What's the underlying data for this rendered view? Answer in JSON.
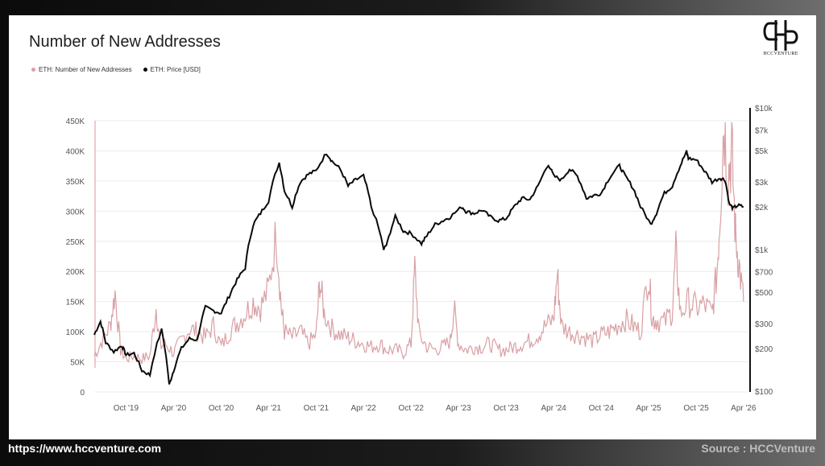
{
  "header": {
    "title": "Number of New Addresses"
  },
  "logo": {
    "text": "HCCVENTURE"
  },
  "footer": {
    "url": "https://www.hccventure.com",
    "source": "Source : HCCVenture"
  },
  "colors": {
    "addresses": "#d9a0a4",
    "price": "#0a0a0a"
  },
  "chart_data": {
    "type": "line",
    "title": "Number of New Addresses",
    "grid": "horizontal",
    "legend_position": "top-left",
    "x_ticks": [
      "Oct '19",
      "Apr '20",
      "Oct '20",
      "Apr '21",
      "Oct '21",
      "Apr '22",
      "Oct '22",
      "Apr '23",
      "Oct '23",
      "Apr '24",
      "Oct '24",
      "Apr '25",
      "Oct '25",
      "Apr '26"
    ],
    "y_left": {
      "ticks": [
        "0",
        "50K",
        "100K",
        "150K",
        "200K",
        "250K",
        "300K",
        "350K",
        "400K",
        "450K"
      ],
      "range": [
        0,
        450000
      ]
    },
    "y_right": {
      "ticks": [
        "$100",
        "$200",
        "$300",
        "$500",
        "$700",
        "$1k",
        "$2k",
        "$3k",
        "$5k",
        "$7k",
        "$10k"
      ],
      "scale": "log",
      "range": [
        100,
        10000
      ]
    },
    "series": [
      {
        "name": "ETH: Number of New Addresses",
        "axis": "left",
        "points": [
          [
            "2019-06-01",
            60000
          ],
          [
            "2019-07-01",
            85000
          ],
          [
            "2019-08-01",
            110000
          ],
          [
            "2019-08-20",
            165000
          ],
          [
            "2019-09-10",
            70000
          ],
          [
            "2019-10-01",
            55000
          ],
          [
            "2019-11-01",
            60000
          ],
          [
            "2019-12-01",
            55000
          ],
          [
            "2020-01-01",
            60000
          ],
          [
            "2020-01-25",
            140000
          ],
          [
            "2020-02-10",
            75000
          ],
          [
            "2020-03-01",
            80000
          ],
          [
            "2020-04-01",
            65000
          ],
          [
            "2020-05-01",
            85000
          ],
          [
            "2020-06-01",
            105000
          ],
          [
            "2020-07-01",
            100000
          ],
          [
            "2020-08-01",
            90000
          ],
          [
            "2020-09-01",
            110000
          ],
          [
            "2020-10-01",
            75000
          ],
          [
            "2020-11-01",
            100000
          ],
          [
            "2020-12-01",
            115000
          ],
          [
            "2021-01-01",
            130000
          ],
          [
            "2021-02-01",
            150000
          ],
          [
            "2021-03-01",
            140000
          ],
          [
            "2021-04-01",
            170000
          ],
          [
            "2021-05-01",
            265000
          ],
          [
            "2021-05-20",
            140000
          ],
          [
            "2021-06-01",
            100000
          ],
          [
            "2021-07-01",
            90000
          ],
          [
            "2021-08-01",
            100000
          ],
          [
            "2021-09-01",
            80000
          ],
          [
            "2021-10-01",
            95000
          ],
          [
            "2021-10-15",
            185000
          ],
          [
            "2021-11-01",
            130000
          ],
          [
            "2021-12-01",
            105000
          ],
          [
            "2022-01-01",
            95000
          ],
          [
            "2022-02-01",
            90000
          ],
          [
            "2022-03-01",
            85000
          ],
          [
            "2022-04-01",
            80000
          ],
          [
            "2022-05-01",
            75000
          ],
          [
            "2022-06-01",
            80000
          ],
          [
            "2022-07-01",
            70000
          ],
          [
            "2022-08-01",
            70000
          ],
          [
            "2022-09-01",
            65000
          ],
          [
            "2022-10-01",
            80000
          ],
          [
            "2022-10-15",
            205000
          ],
          [
            "2022-11-01",
            95000
          ],
          [
            "2022-12-01",
            75000
          ],
          [
            "2023-01-01",
            70000
          ],
          [
            "2023-02-01",
            75000
          ],
          [
            "2023-03-01",
            85000
          ],
          [
            "2023-03-15",
            140000
          ],
          [
            "2023-04-01",
            80000
          ],
          [
            "2023-05-01",
            70000
          ],
          [
            "2023-06-01",
            75000
          ],
          [
            "2023-07-01",
            75000
          ],
          [
            "2023-08-01",
            80000
          ],
          [
            "2023-09-01",
            70000
          ],
          [
            "2023-10-01",
            70000
          ],
          [
            "2023-11-01",
            75000
          ],
          [
            "2023-12-01",
            80000
          ],
          [
            "2024-01-01",
            85000
          ],
          [
            "2024-02-01",
            95000
          ],
          [
            "2024-03-01",
            110000
          ],
          [
            "2024-04-01",
            120000
          ],
          [
            "2024-04-15",
            195000
          ],
          [
            "2024-05-01",
            110000
          ],
          [
            "2024-06-01",
            100000
          ],
          [
            "2024-07-01",
            95000
          ],
          [
            "2024-08-01",
            90000
          ],
          [
            "2024-09-01",
            85000
          ],
          [
            "2024-10-01",
            95000
          ],
          [
            "2024-11-01",
            100000
          ],
          [
            "2024-12-01",
            110000
          ],
          [
            "2025-01-01",
            120000
          ],
          [
            "2025-02-01",
            110000
          ],
          [
            "2025-03-01",
            100000
          ],
          [
            "2025-04-01",
            200000
          ],
          [
            "2025-04-15",
            120000
          ],
          [
            "2025-05-01",
            120000
          ],
          [
            "2025-06-01",
            115000
          ],
          [
            "2025-07-01",
            135000
          ],
          [
            "2025-07-15",
            230000
          ],
          [
            "2025-08-01",
            130000
          ],
          [
            "2025-09-01",
            150000
          ],
          [
            "2025-10-01",
            140000
          ],
          [
            "2025-11-01",
            145000
          ],
          [
            "2025-12-01",
            130000
          ],
          [
            "2025-12-20",
            200000
          ],
          [
            "2026-01-01",
            300000
          ],
          [
            "2026-01-15",
            450000
          ],
          [
            "2026-02-01",
            360000
          ],
          [
            "2026-02-15",
            400000
          ],
          [
            "2026-03-01",
            260000
          ],
          [
            "2026-03-15",
            210000
          ],
          [
            "2026-04-01",
            150000
          ]
        ]
      },
      {
        "name": "ETH: Price [USD]",
        "axis": "right",
        "points": [
          [
            "2019-06-01",
            250
          ],
          [
            "2019-06-25",
            310
          ],
          [
            "2019-07-15",
            220
          ],
          [
            "2019-08-15",
            190
          ],
          [
            "2019-09-15",
            210
          ],
          [
            "2019-10-01",
            180
          ],
          [
            "2019-11-01",
            185
          ],
          [
            "2019-12-01",
            140
          ],
          [
            "2020-01-01",
            130
          ],
          [
            "2020-02-15",
            270
          ],
          [
            "2020-03-15",
            110
          ],
          [
            "2020-04-01",
            140
          ],
          [
            "2020-05-01",
            200
          ],
          [
            "2020-06-01",
            235
          ],
          [
            "2020-07-01",
            230
          ],
          [
            "2020-08-01",
            390
          ],
          [
            "2020-09-01",
            370
          ],
          [
            "2020-10-01",
            355
          ],
          [
            "2020-11-01",
            470
          ],
          [
            "2020-12-01",
            610
          ],
          [
            "2021-01-01",
            740
          ],
          [
            "2021-02-01",
            1500
          ],
          [
            "2021-03-01",
            1800
          ],
          [
            "2021-04-01",
            2200
          ],
          [
            "2021-05-12",
            4100
          ],
          [
            "2021-06-01",
            2600
          ],
          [
            "2021-07-01",
            2000
          ],
          [
            "2021-08-01",
            3000
          ],
          [
            "2021-09-01",
            3400
          ],
          [
            "2021-10-01",
            3600
          ],
          [
            "2021-11-10",
            4800
          ],
          [
            "2021-12-01",
            4200
          ],
          [
            "2022-01-01",
            3700
          ],
          [
            "2022-02-01",
            2800
          ],
          [
            "2022-03-01",
            3100
          ],
          [
            "2022-04-01",
            3300
          ],
          [
            "2022-05-01",
            2000
          ],
          [
            "2022-06-18",
            1000
          ],
          [
            "2022-07-01",
            1100
          ],
          [
            "2022-08-01",
            1700
          ],
          [
            "2022-09-01",
            1350
          ],
          [
            "2022-10-01",
            1300
          ],
          [
            "2022-11-10",
            1100
          ],
          [
            "2022-12-01",
            1250
          ],
          [
            "2023-01-01",
            1500
          ],
          [
            "2023-02-01",
            1600
          ],
          [
            "2023-03-01",
            1700
          ],
          [
            "2023-04-15",
            2000
          ],
          [
            "2023-05-01",
            1850
          ],
          [
            "2023-06-01",
            1800
          ],
          [
            "2023-07-01",
            1900
          ],
          [
            "2023-08-01",
            1700
          ],
          [
            "2023-09-01",
            1600
          ],
          [
            "2023-10-01",
            1650
          ],
          [
            "2023-11-01",
            2000
          ],
          [
            "2023-12-01",
            2300
          ],
          [
            "2024-01-01",
            2250
          ],
          [
            "2024-02-01",
            2800
          ],
          [
            "2024-03-12",
            4000
          ],
          [
            "2024-04-01",
            3300
          ],
          [
            "2024-05-01",
            3100
          ],
          [
            "2024-06-01",
            3700
          ],
          [
            "2024-07-01",
            3300
          ],
          [
            "2024-08-05",
            2300
          ],
          [
            "2024-09-01",
            2400
          ],
          [
            "2024-10-01",
            2500
          ],
          [
            "2024-11-01",
            3200
          ],
          [
            "2024-12-10",
            3900
          ],
          [
            "2025-01-01",
            3300
          ],
          [
            "2025-02-01",
            2700
          ],
          [
            "2025-03-01",
            2000
          ],
          [
            "2025-04-09",
            1500
          ],
          [
            "2025-05-01",
            1800
          ],
          [
            "2025-06-01",
            2500
          ],
          [
            "2025-07-01",
            2800
          ],
          [
            "2025-08-01",
            3900
          ],
          [
            "2025-08-25",
            4900
          ],
          [
            "2025-09-01",
            4400
          ],
          [
            "2025-10-01",
            4300
          ],
          [
            "2025-11-01",
            3600
          ],
          [
            "2025-12-01",
            3000
          ],
          [
            "2026-01-01",
            3200
          ],
          [
            "2026-01-20",
            3100
          ],
          [
            "2026-02-05",
            2100
          ],
          [
            "2026-02-20",
            1950
          ],
          [
            "2026-03-10",
            2050
          ],
          [
            "2026-04-01",
            2000
          ]
        ]
      }
    ]
  }
}
